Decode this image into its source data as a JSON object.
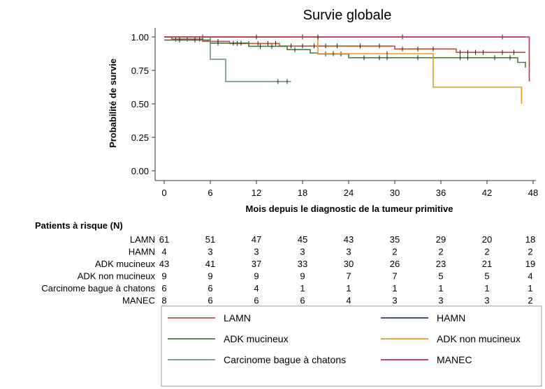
{
  "chart_data": {
    "type": "line",
    "title": "Survie globale",
    "xlabel": "Mois depuis le diagnostic de la tumeur primitive",
    "ylabel": "Probabilité de survie",
    "xlim": [
      0,
      48
    ],
    "ylim": [
      0,
      1
    ],
    "xticks": [
      "0",
      "6",
      "12",
      "18",
      "24",
      "30",
      "36",
      "42",
      "48"
    ],
    "yticks": [
      "0.00",
      "0.25",
      "0.50",
      "0.75",
      "1.00"
    ],
    "grid": false,
    "legend_position": "bottom",
    "series": [
      {
        "name": "LAMN",
        "color": "#b5533c",
        "points": [
          [
            0,
            1.0
          ],
          [
            1,
            0.984
          ],
          [
            5,
            0.967
          ],
          [
            8.5,
            0.951
          ],
          [
            15,
            0.932
          ],
          [
            25,
            0.932
          ],
          [
            30,
            0.91
          ],
          [
            38,
            0.885
          ],
          [
            47,
            0.885
          ]
        ],
        "censors": [
          1.5,
          2,
          3,
          4,
          4.6,
          7,
          9.5,
          11,
          12.2,
          13.5,
          14.5,
          16.5,
          18,
          19.5,
          21,
          22.5,
          25.5,
          28,
          31,
          33,
          35,
          38.5,
          39.5,
          40.5,
          41.5,
          44,
          45.5
        ]
      },
      {
        "name": "HAMN",
        "color": "#2b3a7a",
        "points": [
          [
            0,
            1.0
          ],
          [
            47,
            1.0
          ]
        ],
        "censors": [
          5,
          18,
          31,
          44
        ]
      },
      {
        "name": "ADK mucineux",
        "color": "#4a7a2e",
        "points": [
          [
            0,
            0.977
          ],
          [
            3,
            0.977
          ],
          [
            6,
            0.954
          ],
          [
            11,
            0.93
          ],
          [
            16,
            0.905
          ],
          [
            19,
            0.88
          ],
          [
            20,
            0.873
          ],
          [
            24,
            0.845
          ],
          [
            46,
            0.81
          ],
          [
            47,
            0.77
          ]
        ],
        "censors": [
          2,
          4,
          7,
          9,
          10,
          12.5,
          14,
          17,
          21,
          23,
          26,
          28,
          29,
          33,
          35,
          38.5,
          39.5,
          43,
          45
        ]
      },
      {
        "name": "ADK non mucineux",
        "color": "#e8962e",
        "points": [
          [
            0,
            1.0
          ],
          [
            20,
            1.0
          ],
          [
            20,
            0.875
          ],
          [
            35,
            0.875
          ],
          [
            35,
            0.625
          ],
          [
            46.5,
            0.625
          ],
          [
            46.5,
            0.5
          ]
        ],
        "censors": [
          22,
          29
        ]
      },
      {
        "name": "Carcinome bague à chatons",
        "color": "#6f9386",
        "points": [
          [
            0,
            1.0
          ],
          [
            6,
            1.0
          ],
          [
            6,
            0.833
          ],
          [
            8,
            0.833
          ],
          [
            8,
            0.667
          ],
          [
            16.5,
            0.667
          ]
        ],
        "censors": [
          14.8,
          16
        ]
      },
      {
        "name": "MANEC",
        "color": "#c42b4d",
        "points": [
          [
            0,
            1.0
          ],
          [
            47.5,
            1.0
          ],
          [
            47.5,
            0.667
          ]
        ],
        "censors": [
          12,
          20
        ]
      }
    ],
    "risk_table": {
      "title": "Patients à risque (N)",
      "times": [
        0,
        6,
        12,
        18,
        24,
        30,
        36,
        42,
        48
      ],
      "rows": [
        {
          "label": "LAMN",
          "values": [
            "61",
            "51",
            "47",
            "45",
            "43",
            "35",
            "29",
            "20",
            "18"
          ]
        },
        {
          "label": "HAMN",
          "values": [
            "4",
            "3",
            "3",
            "3",
            "3",
            "2",
            "2",
            "2",
            "2"
          ]
        },
        {
          "label": "ADK mucineux",
          "values": [
            "43",
            "41",
            "37",
            "33",
            "30",
            "26",
            "23",
            "21",
            "19"
          ]
        },
        {
          "label": "ADK non mucineux",
          "values": [
            "9",
            "9",
            "9",
            "9",
            "7",
            "7",
            "5",
            "5",
            "4"
          ]
        },
        {
          "label": "Carcinome bague à chatons",
          "values": [
            "6",
            "6",
            "4",
            "1",
            "1",
            "1",
            "1",
            "1",
            "1"
          ]
        },
        {
          "label": "MANEC",
          "values": [
            "8",
            "6",
            "6",
            "6",
            "4",
            "3",
            "3",
            "3",
            "2"
          ]
        }
      ]
    },
    "legend": [
      {
        "label": "LAMN",
        "color": "#b5533c"
      },
      {
        "label": "HAMN",
        "color": "#2b3a7a"
      },
      {
        "label": "ADK mucineux",
        "color": "#4a7a2e"
      },
      {
        "label": "ADK non mucineux",
        "color": "#e8962e"
      },
      {
        "label": "Carcinome bague à chatons",
        "color": "#6f9386"
      },
      {
        "label": "MANEC",
        "color": "#c42b4d"
      }
    ]
  }
}
